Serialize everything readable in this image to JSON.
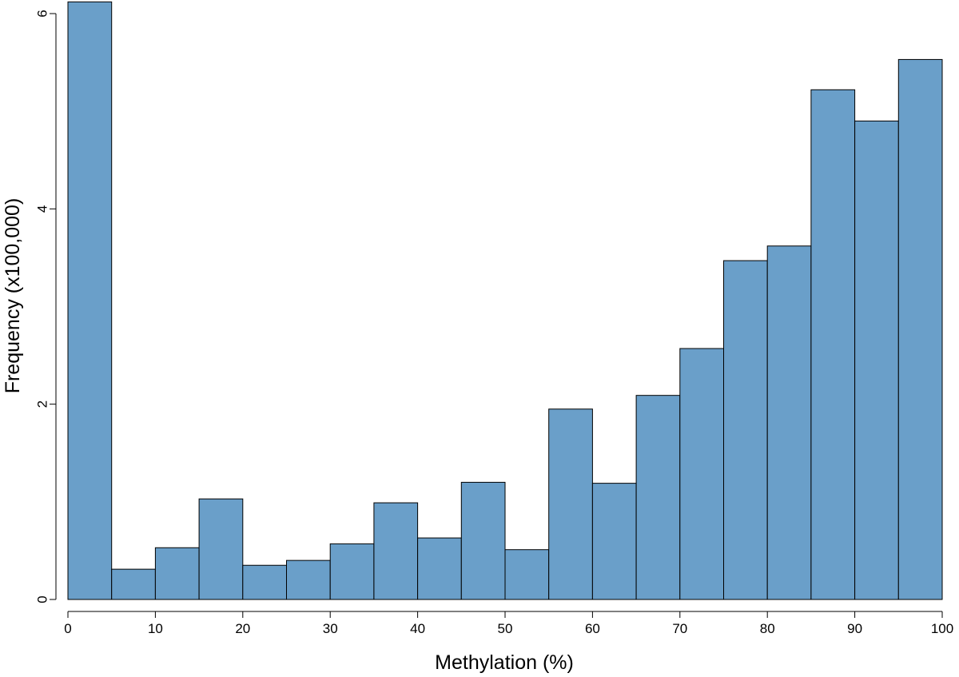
{
  "chart_data": {
    "type": "bar",
    "title": "",
    "xlabel": "Methylation (%)",
    "ylabel": "Frequency (x100,000)",
    "bin_edges": [
      0,
      5,
      10,
      15,
      20,
      25,
      30,
      35,
      40,
      45,
      50,
      55,
      60,
      65,
      70,
      75,
      80,
      85,
      90,
      95,
      100
    ],
    "values": [
      6.12,
      0.31,
      0.53,
      1.03,
      0.35,
      0.4,
      0.57,
      0.99,
      0.63,
      1.2,
      0.51,
      1.95,
      1.19,
      2.09,
      2.57,
      3.47,
      3.62,
      5.22,
      4.9,
      5.53
    ],
    "xlim": [
      0,
      100
    ],
    "ylim": [
      0,
      6
    ],
    "xticks": [
      0,
      10,
      20,
      30,
      40,
      50,
      60,
      70,
      80,
      90,
      100
    ],
    "yticks": [
      0,
      2,
      4,
      6
    ],
    "bar_color": "#6a9fc9",
    "edge_color": "#000000",
    "grid": false
  }
}
